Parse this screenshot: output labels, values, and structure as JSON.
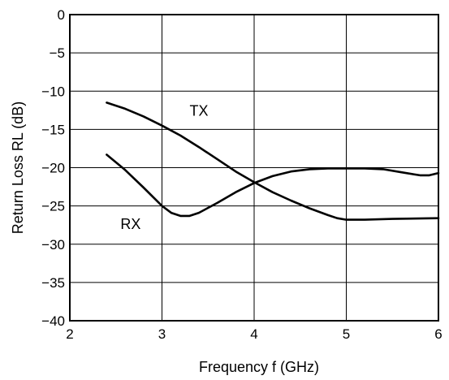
{
  "chart_data": {
    "type": "line",
    "title": "",
    "xlabel": "Frequency  f (GHz)",
    "ylabel": "Return Loss  RL (dB)",
    "xlim": [
      2,
      6
    ],
    "ylim": [
      -40,
      0
    ],
    "xticks": [
      "2",
      "3",
      "4",
      "5",
      "6"
    ],
    "yticks": [
      "0",
      "−5",
      "−10",
      "−15",
      "−20",
      "−25",
      "−30",
      "−35",
      "−40"
    ],
    "grid": true,
    "legend": "none",
    "series": [
      {
        "name": "TX",
        "color": "#000000",
        "x": [
          2.4,
          2.6,
          2.8,
          3.0,
          3.2,
          3.4,
          3.6,
          3.8,
          4.0,
          4.2,
          4.4,
          4.6,
          4.8,
          4.9,
          5.0,
          5.2,
          5.5,
          6.0
        ],
        "y": [
          -11.5,
          -12.3,
          -13.3,
          -14.5,
          -15.8,
          -17.3,
          -18.9,
          -20.5,
          -21.9,
          -23.2,
          -24.3,
          -25.3,
          -26.2,
          -26.6,
          -26.8,
          -26.8,
          -26.7,
          -26.6
        ]
      },
      {
        "name": "RX",
        "color": "#000000",
        "x": [
          2.4,
          2.6,
          2.8,
          3.0,
          3.1,
          3.2,
          3.3,
          3.4,
          3.6,
          3.8,
          4.0,
          4.2,
          4.4,
          4.6,
          4.8,
          5.0,
          5.2,
          5.4,
          5.6,
          5.8,
          5.9,
          6.0
        ],
        "y": [
          -18.3,
          -20.3,
          -22.6,
          -25.0,
          -25.9,
          -26.3,
          -26.3,
          -25.9,
          -24.6,
          -23.2,
          -22.0,
          -21.1,
          -20.5,
          -20.2,
          -20.1,
          -20.1,
          -20.1,
          -20.2,
          -20.6,
          -21.0,
          -21.0,
          -20.7
        ]
      }
    ],
    "annotations": [
      {
        "text": "TX",
        "x": 3.3,
        "y": -13.2
      },
      {
        "text": "RX",
        "x": 2.55,
        "y": -28.0
      }
    ]
  }
}
